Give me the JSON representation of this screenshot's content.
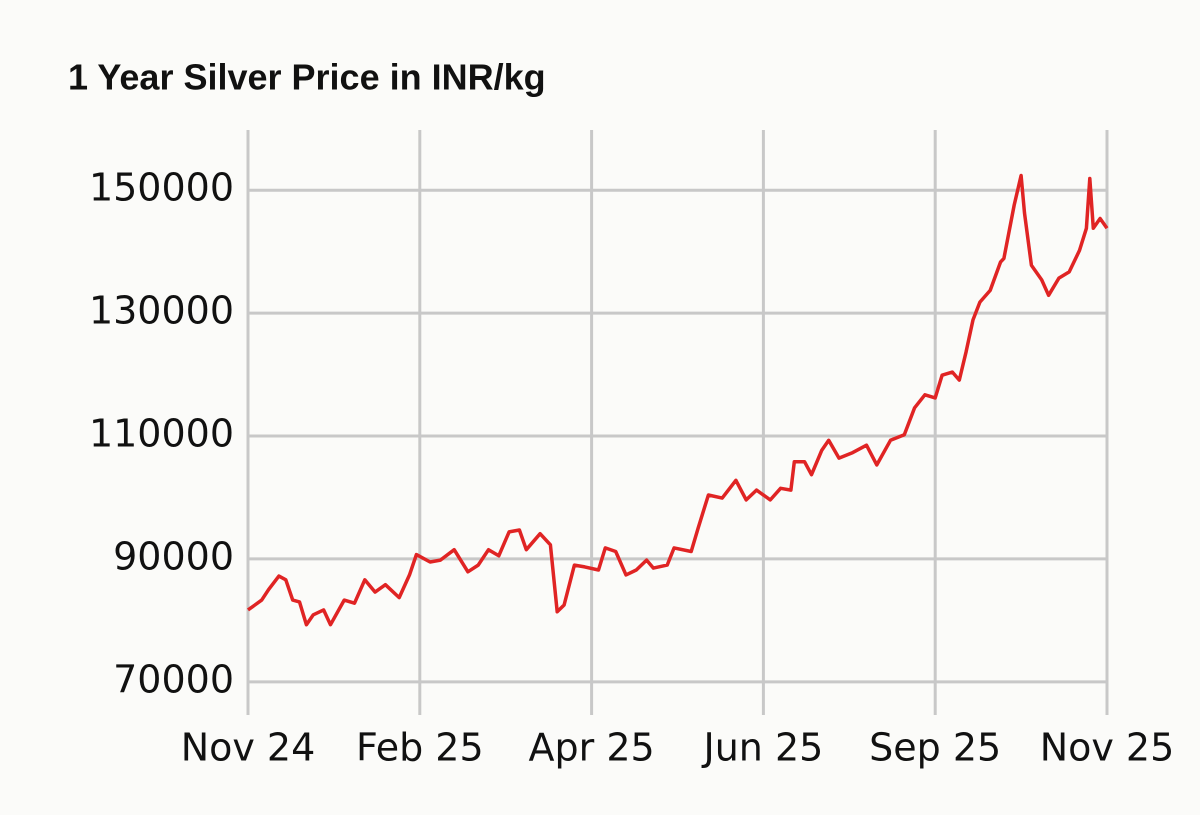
{
  "chart_data": {
    "type": "line",
    "title": "1 Year Silver Price in INR/kg",
    "x": [
      0,
      2,
      4,
      6,
      9,
      11,
      13,
      15,
      17,
      19,
      22,
      24,
      28,
      31,
      34,
      37,
      40,
      44,
      47,
      49,
      53,
      56,
      60,
      64,
      67,
      70,
      73,
      76,
      79,
      81,
      85,
      88,
      90,
      92,
      95,
      98,
      102,
      104,
      107,
      110,
      113,
      116,
      118,
      122,
      124,
      129,
      131,
      134,
      138,
      142,
      145,
      148,
      152,
      155,
      158,
      159,
      162,
      164,
      167,
      169,
      172,
      176,
      180,
      183,
      187,
      191,
      194,
      197,
      200,
      202,
      205,
      207,
      209,
      211,
      213,
      216,
      219,
      220,
      223,
      225,
      226,
      228,
      231,
      233,
      236,
      239,
      242,
      244,
      245,
      246,
      248,
      250
    ],
    "series": [
      {
        "name": "Silver Price",
        "color": "#e02424",
        "values": [
          81700,
          82500,
          83300,
          85000,
          87200,
          86600,
          83300,
          83000,
          79300,
          80900,
          81700,
          79300,
          83300,
          82800,
          86600,
          84600,
          85800,
          83700,
          87400,
          90700,
          89500,
          89800,
          91500,
          87900,
          89000,
          91500,
          90500,
          94400,
          94700,
          91500,
          94100,
          92300,
          81400,
          82500,
          89000,
          88700,
          88200,
          91800,
          91200,
          87400,
          88200,
          89800,
          88500,
          89000,
          91800,
          91200,
          95000,
          100400,
          99900,
          102800,
          99600,
          101200,
          99600,
          101500,
          101200,
          105800,
          105800,
          103700,
          107700,
          109300,
          106400,
          107300,
          108500,
          105300,
          109300,
          110200,
          114600,
          116700,
          116200,
          119900,
          120400,
          119100,
          123700,
          128900,
          131800,
          133700,
          138300,
          138900,
          147600,
          152400,
          146300,
          137800,
          135400,
          132900,
          135700,
          136700,
          140200,
          143800,
          151900,
          143800,
          145400,
          143800
        ]
      }
    ],
    "xlim": [
      0,
      250
    ],
    "xticks": [
      {
        "value": 0,
        "label": "Nov 24"
      },
      {
        "value": 50,
        "label": "Feb 25"
      },
      {
        "value": 100,
        "label": "Apr 25"
      },
      {
        "value": 150,
        "label": "Jun 25"
      },
      {
        "value": 200,
        "label": "Sep 25"
      },
      {
        "value": 250,
        "label": "Nov 25"
      }
    ],
    "ylim": [
      64600,
      159800
    ],
    "yticks": [
      70000,
      90000,
      110000,
      130000,
      150000
    ],
    "grid": true
  }
}
